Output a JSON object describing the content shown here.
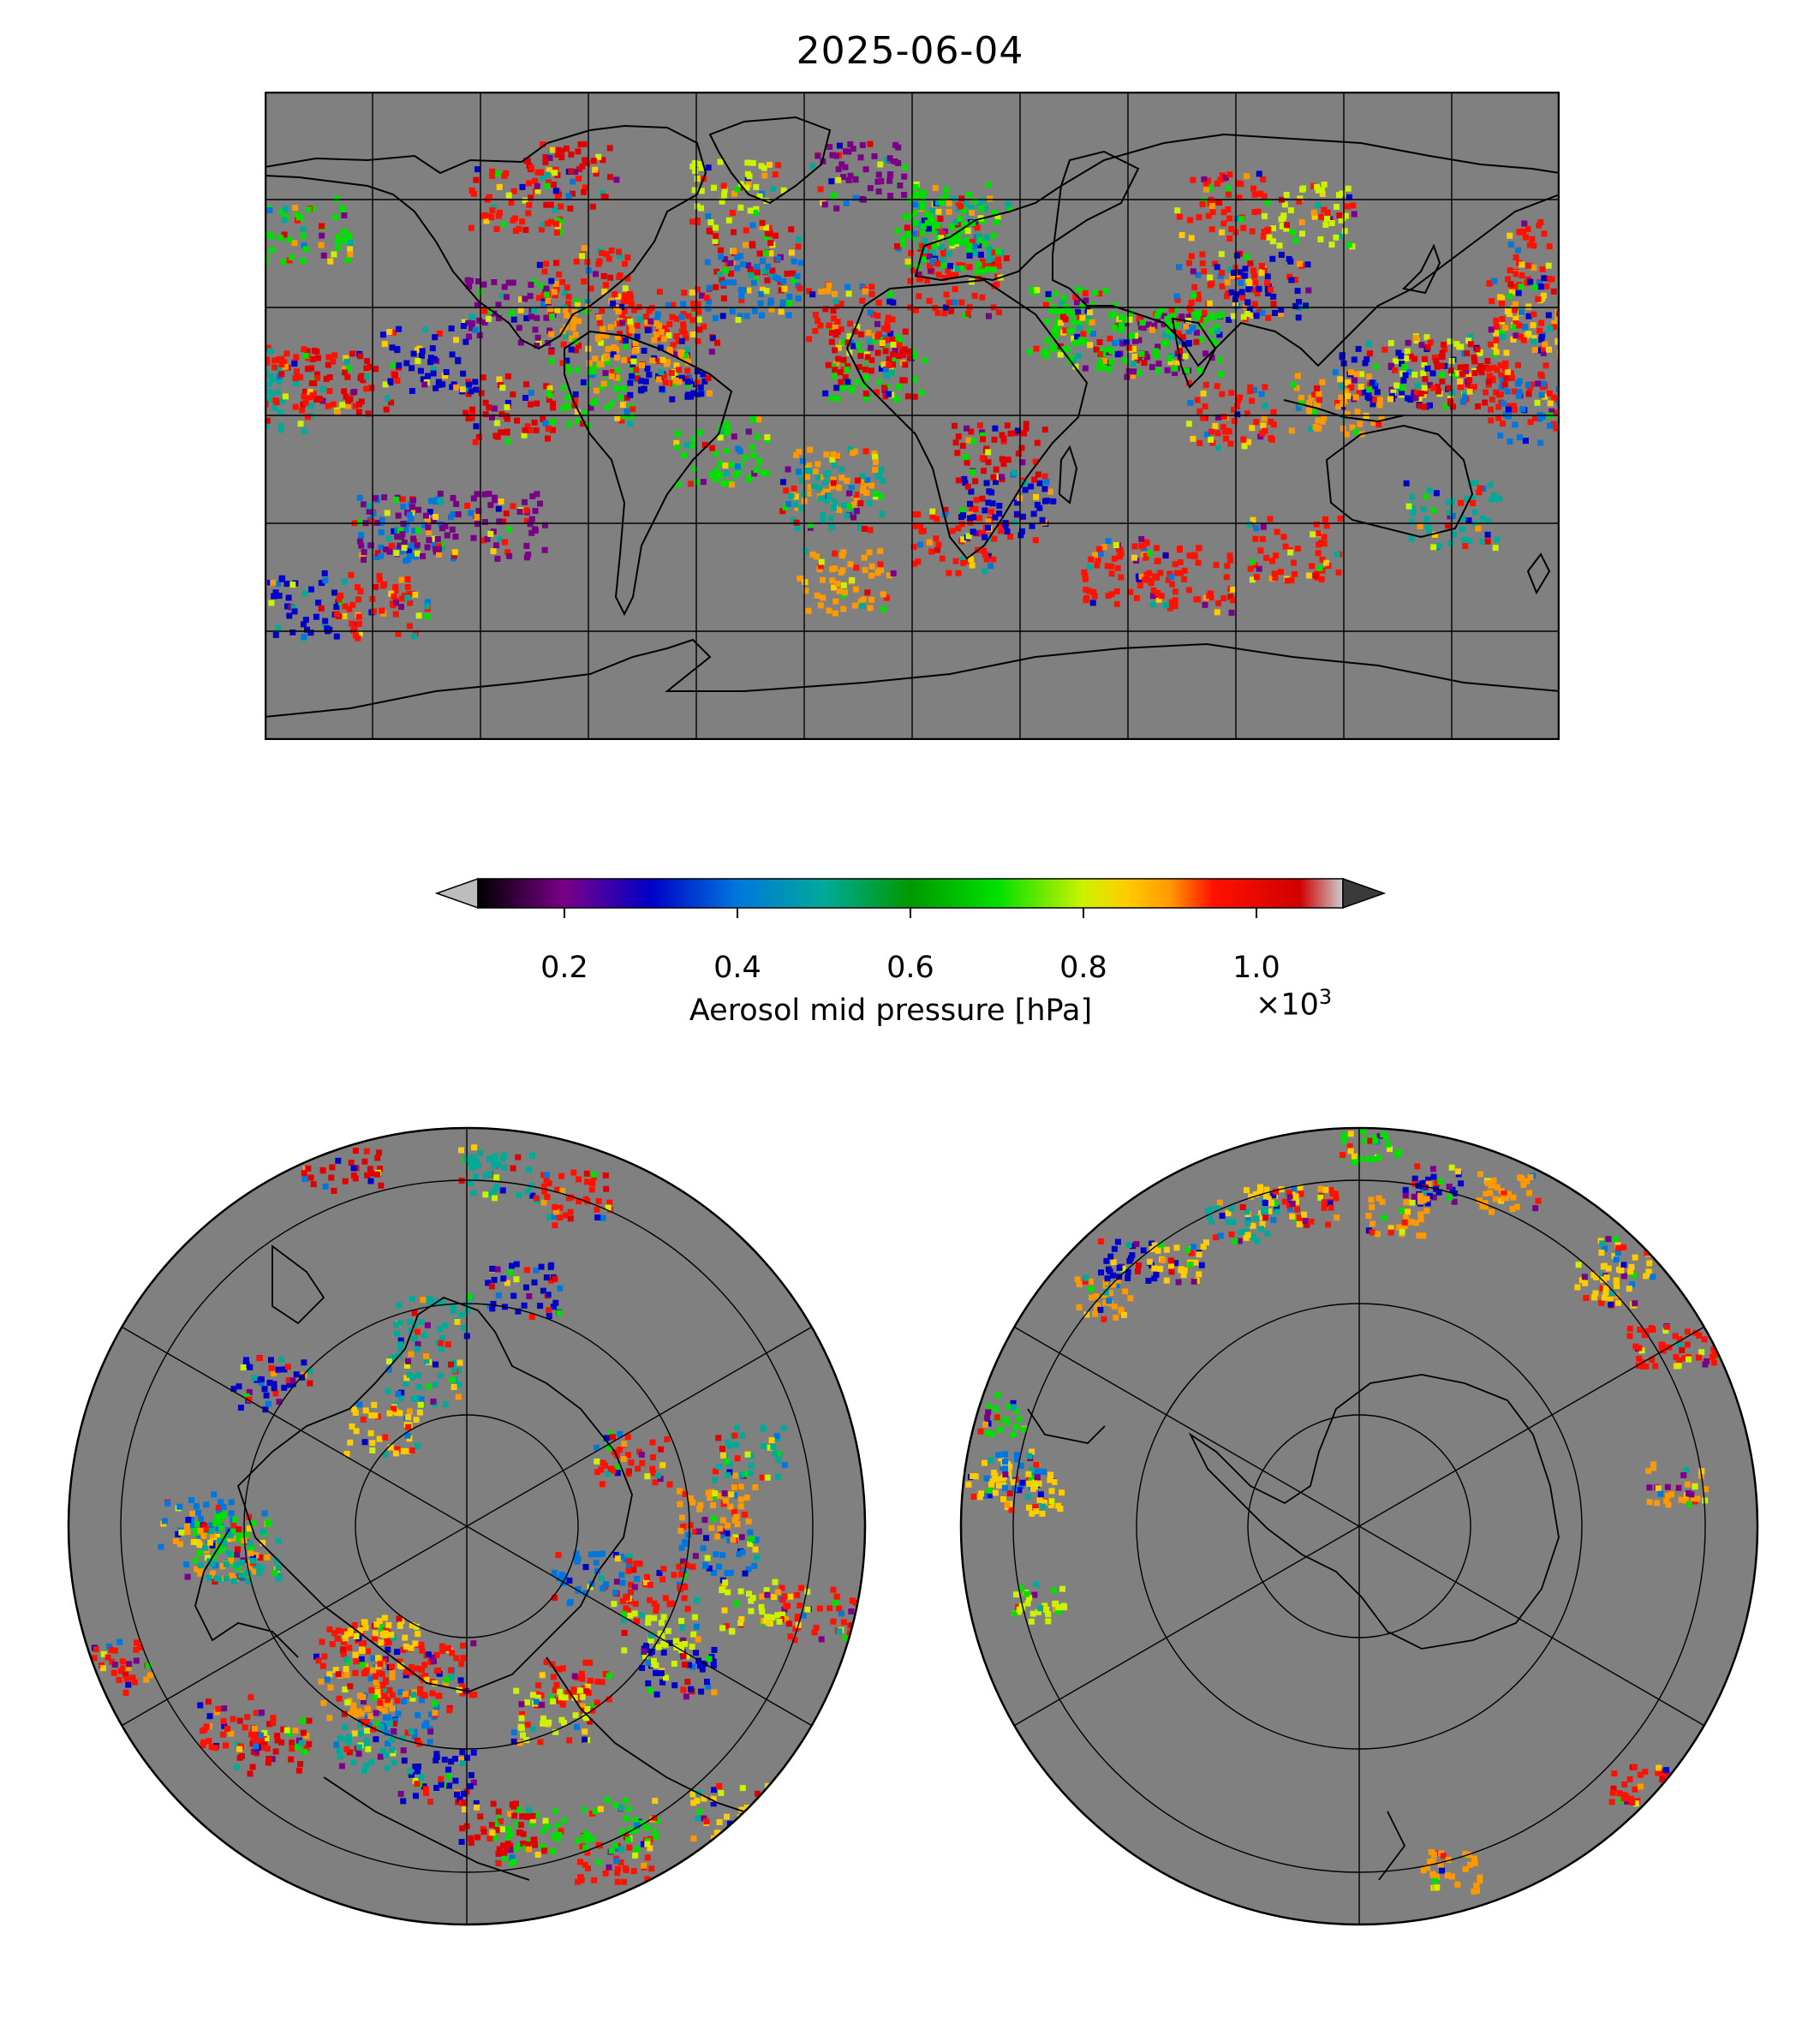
{
  "title": "2025-06-04",
  "colorbar": {
    "label": "Aerosol mid pressure [hPa]",
    "ticks": [
      "0.2",
      "0.4",
      "0.6",
      "0.8",
      "1.0"
    ],
    "tick_values": [
      0.2,
      0.4,
      0.6,
      0.8,
      1.0
    ],
    "range": [
      0.1,
      1.1
    ],
    "multiplier": "×10",
    "multiplier_exp": "3",
    "extend": "both",
    "colormap": "nipy_spectral",
    "colors": {
      "under": "#bdbdbd",
      "over": "#3a3a3a",
      "no_data": "#808080"
    }
  },
  "maps": {
    "world": {
      "projection": "PlateCarree",
      "gridlines": true
    },
    "north_polar": {
      "projection": "NorthPolarStereo",
      "gridlines": true
    },
    "south_polar": {
      "projection": "SouthPolarStereo",
      "gridlines": true
    }
  }
}
